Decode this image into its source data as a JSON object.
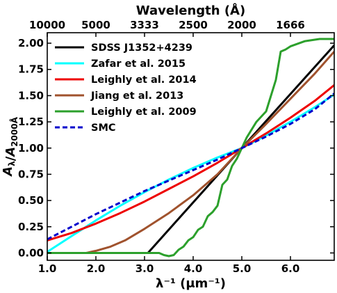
{
  "chart_data": {
    "type": "line",
    "title": "",
    "xlabel": "λ⁻¹ (μm⁻¹)",
    "ylabel": "A_λ/A_2000Å",
    "top_xlabel": "Wavelength (Å)",
    "xlim": [
      1.0,
      6.9
    ],
    "ylim": [
      -0.07,
      2.1
    ],
    "x_ticks": [
      {
        "value": 1.0,
        "label": "1.0"
      },
      {
        "value": 2.0,
        "label": "2.0"
      },
      {
        "value": 3.0,
        "label": "3.0"
      },
      {
        "value": 4.0,
        "label": "4.0"
      },
      {
        "value": 5.0,
        "label": "5.0"
      },
      {
        "value": 6.0,
        "label": "6.0"
      }
    ],
    "top_x_ticks": [
      {
        "value": 1.0,
        "label": "10000"
      },
      {
        "value": 2.0,
        "label": "5000"
      },
      {
        "value": 3.0,
        "label": "3333"
      },
      {
        "value": 4.0,
        "label": "2500"
      },
      {
        "value": 5.0,
        "label": "2000"
      },
      {
        "value": 6.0,
        "label": "1666"
      }
    ],
    "y_ticks": [
      {
        "value": 0.0,
        "label": "0.00"
      },
      {
        "value": 0.25,
        "label": "0.25"
      },
      {
        "value": 0.5,
        "label": "0.50"
      },
      {
        "value": 0.75,
        "label": "0.75"
      },
      {
        "value": 1.0,
        "label": "1.00"
      },
      {
        "value": 1.25,
        "label": "1.25"
      },
      {
        "value": 1.5,
        "label": "1.50"
      },
      {
        "value": 1.75,
        "label": "1.75"
      },
      {
        "value": 2.0,
        "label": "2.00"
      }
    ],
    "legend_position": "upper-left",
    "grid": false,
    "series": [
      {
        "name": "SDSS J1352+4239",
        "color": "#000000",
        "style": "solid",
        "x": [
          1.0,
          3.07,
          5.0,
          6.9
        ],
        "y": [
          0.0,
          0.0,
          1.0,
          1.98
        ]
      },
      {
        "name": "Zafar et al. 2015",
        "color": "#00ffff",
        "style": "solid",
        "x": [
          1.0,
          1.5,
          2.0,
          2.5,
          3.0,
          3.5,
          4.0,
          4.5,
          5.0,
          5.5,
          6.0,
          6.5,
          6.9
        ],
        "y": [
          0.01,
          0.16,
          0.31,
          0.45,
          0.58,
          0.7,
          0.81,
          0.91,
          1.0,
          1.12,
          1.25,
          1.39,
          1.51
        ]
      },
      {
        "name": "Leighly et al. 2014",
        "color": "#ee0000",
        "style": "solid",
        "x": [
          1.0,
          1.5,
          2.0,
          2.5,
          3.0,
          3.5,
          4.0,
          4.5,
          5.0,
          5.5,
          6.0,
          6.5,
          6.9
        ],
        "y": [
          0.12,
          0.19,
          0.28,
          0.38,
          0.49,
          0.61,
          0.73,
          0.86,
          1.0,
          1.14,
          1.29,
          1.45,
          1.6
        ]
      },
      {
        "name": "Jiang et al. 2013",
        "color": "#a0522d",
        "style": "solid",
        "x": [
          1.8,
          2.0,
          2.3,
          2.6,
          3.0,
          3.5,
          4.0,
          4.5,
          5.0,
          5.5,
          6.0,
          6.5,
          6.9
        ],
        "y": [
          0.0,
          0.02,
          0.06,
          0.12,
          0.23,
          0.38,
          0.55,
          0.75,
          1.0,
          1.23,
          1.47,
          1.71,
          1.92
        ]
      },
      {
        "name": "Leighly et al. 2009",
        "color": "#2ca02c",
        "style": "solid",
        "x": [
          1.0,
          2.0,
          3.0,
          3.3,
          3.4,
          3.5,
          3.6,
          3.7,
          3.8,
          3.9,
          4.0,
          4.1,
          4.2,
          4.3,
          4.4,
          4.5,
          4.6,
          4.7,
          4.8,
          4.9,
          5.0,
          5.1,
          5.3,
          5.5,
          5.7,
          5.8,
          5.9,
          6.0,
          6.3,
          6.6,
          6.9
        ],
        "y": [
          0.0,
          0.0,
          0.0,
          0.0,
          -0.02,
          -0.03,
          -0.02,
          0.03,
          0.06,
          0.12,
          0.15,
          0.22,
          0.25,
          0.35,
          0.39,
          0.45,
          0.65,
          0.7,
          0.83,
          0.9,
          1.0,
          1.1,
          1.25,
          1.35,
          1.65,
          1.92,
          1.94,
          1.97,
          2.02,
          2.04,
          2.04
        ]
      },
      {
        "name": "SMC",
        "color": "#0000cc",
        "style": "dashed",
        "x": [
          1.0,
          1.5,
          2.0,
          2.5,
          3.0,
          3.5,
          4.0,
          4.5,
          5.0,
          5.5,
          6.0,
          6.5,
          6.9
        ],
        "y": [
          0.13,
          0.25,
          0.37,
          0.48,
          0.59,
          0.69,
          0.79,
          0.89,
          1.0,
          1.11,
          1.23,
          1.37,
          1.52
        ]
      }
    ]
  }
}
